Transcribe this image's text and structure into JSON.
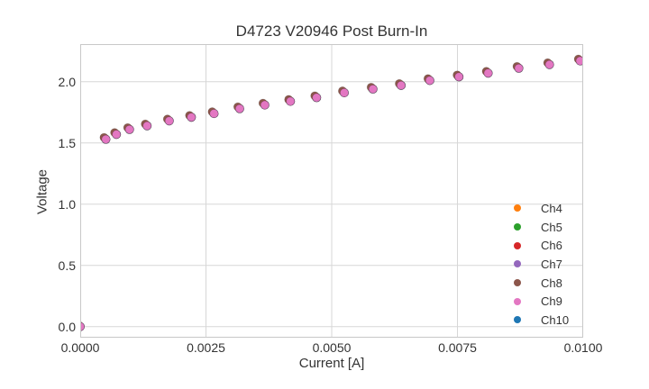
{
  "chart_data": {
    "type": "scatter",
    "title": "D4723 V20946 Post Burn-In",
    "xlabel": "Current [A]",
    "ylabel": "Voltage",
    "xlim": [
      0.0,
      0.01
    ],
    "ylim": [
      -0.09,
      2.307
    ],
    "grid": true,
    "legend_position": "lower right",
    "x_ticks": {
      "values": [
        0.0,
        0.0025,
        0.005,
        0.0075,
        0.01
      ],
      "labels": [
        "0.0000",
        "0.0025",
        "0.0050",
        "0.0075",
        "0.0100"
      ]
    },
    "y_ticks": {
      "values": [
        0.0,
        0.5,
        1.0,
        1.5,
        2.0
      ],
      "labels": [
        "0.0",
        "0.5",
        "1.0",
        "1.5",
        "2.0"
      ]
    },
    "x": [
      0.0,
      0.00051,
      0.00072,
      0.00098,
      0.00133,
      0.00177,
      0.00221,
      0.00266,
      0.00317,
      0.00367,
      0.00418,
      0.0047,
      0.00525,
      0.00582,
      0.00638,
      0.00695,
      0.00753,
      0.00811,
      0.00872,
      0.00933,
      0.00994
    ],
    "y": [
      0.0,
      1.53,
      1.57,
      1.61,
      1.64,
      1.68,
      1.71,
      1.74,
      1.78,
      1.81,
      1.84,
      1.87,
      1.91,
      1.94,
      1.97,
      2.01,
      2.04,
      2.07,
      2.11,
      2.14,
      2.17
    ],
    "series": [
      {
        "name": "Ch4",
        "color": "#ff7f0e"
      },
      {
        "name": "Ch5",
        "color": "#2ca02c"
      },
      {
        "name": "Ch6",
        "color": "#d62728"
      },
      {
        "name": "Ch7",
        "color": "#9467bd"
      },
      {
        "name": "Ch8",
        "color": "#8c564b"
      },
      {
        "name": "Ch9",
        "color": "#e377c2"
      },
      {
        "name": "Ch10",
        "color": "#1f77b4"
      }
    ],
    "render": {
      "all_series_overlap_shared_xy": true,
      "draw_order": [
        "Ch4",
        "Ch5",
        "Ch6",
        "Ch7",
        "Ch10",
        "Ch8",
        "Ch9"
      ],
      "series_pixel_offsets": {
        "Ch8": [
          -2,
          -2
        ]
      },
      "marker_radius_px": 4.6,
      "legend_marker_radius_px": 4,
      "grid_color": "#d7d7d7",
      "spine_color": "#c8c8c8",
      "text_color": "#333333",
      "background_color": "#ffffff"
    }
  }
}
